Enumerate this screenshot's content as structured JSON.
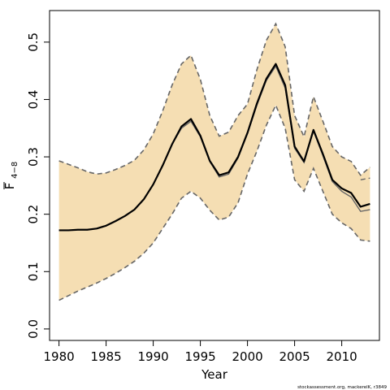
{
  "chart_data": {
    "type": "line",
    "title": "",
    "xlabel": "Year",
    "ylabel_main": "F",
    "ylabel_sub": "4−8",
    "xlim": [
      1979,
      2014
    ],
    "ylim": [
      -0.02,
      0.555
    ],
    "xticks": [
      1980,
      1985,
      1990,
      1995,
      2000,
      2005,
      2010
    ],
    "yticks": [
      0.0,
      0.1,
      0.2,
      0.3,
      0.4,
      0.5
    ],
    "ytick_labels": [
      "0.0",
      "0.1",
      "0.2",
      "0.3",
      "0.4",
      "0.5"
    ],
    "grid": false,
    "legend": "none",
    "band_color": "#F5DEB3",
    "line_color": "#000000",
    "band_edge_color": "#666666",
    "x": [
      1980,
      1981,
      1982,
      1983,
      1984,
      1985,
      1986,
      1987,
      1988,
      1989,
      1990,
      1991,
      1992,
      1993,
      1994,
      1995,
      1996,
      1997,
      1998,
      1999,
      2000,
      2001,
      2002,
      2003,
      2004,
      2005,
      2006,
      2007,
      2008,
      2009,
      2010,
      2011,
      2012,
      2013
    ],
    "series": [
      {
        "role": "estimate",
        "values": [
          0.172,
          0.172,
          0.173,
          0.173,
          0.175,
          0.18,
          0.188,
          0.197,
          0.208,
          0.226,
          0.252,
          0.285,
          0.322,
          0.353,
          0.366,
          0.337,
          0.293,
          0.268,
          0.273,
          0.3,
          0.342,
          0.393,
          0.436,
          0.462,
          0.425,
          0.318,
          0.292,
          0.347,
          0.305,
          0.26,
          0.245,
          0.237,
          0.213,
          0.218
        ]
      },
      {
        "role": "lower",
        "values": [
          0.05,
          0.058,
          0.066,
          0.073,
          0.08,
          0.088,
          0.097,
          0.107,
          0.118,
          0.132,
          0.15,
          0.175,
          0.2,
          0.228,
          0.24,
          0.228,
          0.207,
          0.19,
          0.195,
          0.22,
          0.27,
          0.31,
          0.355,
          0.39,
          0.35,
          0.26,
          0.24,
          0.28,
          0.24,
          0.2,
          0.185,
          0.175,
          0.155,
          0.153
        ]
      },
      {
        "role": "upper",
        "values": [
          0.293,
          0.287,
          0.281,
          0.274,
          0.27,
          0.272,
          0.278,
          0.285,
          0.294,
          0.312,
          0.34,
          0.38,
          0.425,
          0.462,
          0.477,
          0.435,
          0.372,
          0.336,
          0.343,
          0.372,
          0.392,
          0.452,
          0.503,
          0.532,
          0.492,
          0.372,
          0.335,
          0.405,
          0.362,
          0.318,
          0.3,
          0.292,
          0.268,
          0.282
        ]
      },
      {
        "role": "estimate-alt",
        "values": [
          0.172,
          0.172,
          0.173,
          0.173,
          0.175,
          0.18,
          0.188,
          0.197,
          0.208,
          0.226,
          0.252,
          0.285,
          0.322,
          0.35,
          0.362,
          0.335,
          0.292,
          0.265,
          0.27,
          0.298,
          0.34,
          0.39,
          0.433,
          0.458,
          0.42,
          0.315,
          0.29,
          0.345,
          0.302,
          0.257,
          0.24,
          0.23,
          0.205,
          0.208
        ]
      },
      {
        "role": "upper-alt",
        "values": [
          null,
          null,
          null,
          null,
          null,
          null,
          null,
          null,
          null,
          null,
          null,
          null,
          null,
          null,
          null,
          null,
          null,
          null,
          null,
          null,
          null,
          null,
          null,
          null,
          null,
          null,
          null,
          null,
          null,
          null,
          null,
          null,
          0.26,
          0.263
        ]
      }
    ]
  },
  "footnote": "stockassessment.org, mackerelK, r3849"
}
